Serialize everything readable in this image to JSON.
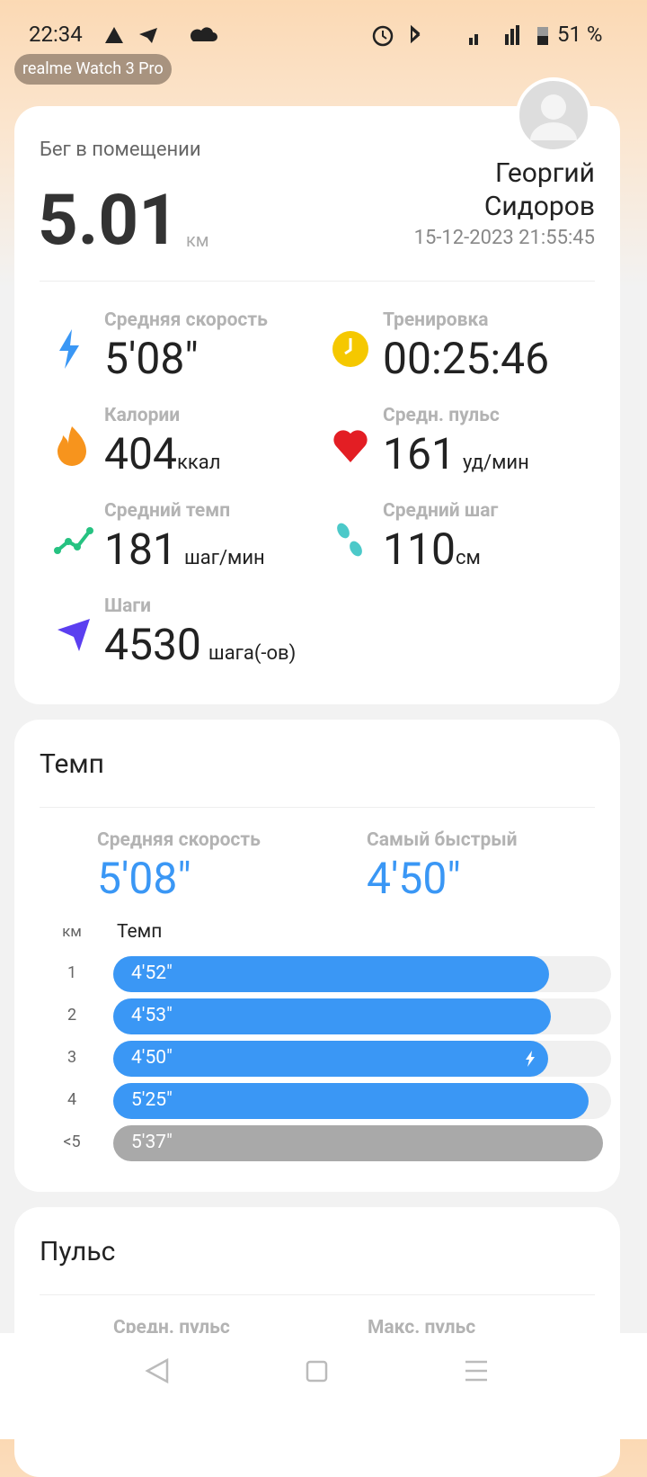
{
  "status": {
    "time": "22:34",
    "battery": "51 %"
  },
  "device": "realme Watch 3 Pro",
  "summary": {
    "activity": "Бег в помещении",
    "distance": "5.01",
    "unit": "км",
    "name_first": "Георгий",
    "name_last": "Сидоров",
    "datetime": "15-12-2023 21:55:45"
  },
  "metrics": [
    {
      "label": "Средняя скорость",
      "value": "5'08\"",
      "unit": ""
    },
    {
      "label": "Тренировка",
      "value": "00:25:46",
      "unit": ""
    },
    {
      "label": "Калории",
      "value": "404",
      "unit": "ккал"
    },
    {
      "label": "Средн. пульс",
      "value": "161",
      "unit": "уд/мин"
    },
    {
      "label": "Средний темп",
      "value": "181",
      "unit": "шаг/мин"
    },
    {
      "label": "Средний шаг",
      "value": "110",
      "unit": "см"
    },
    {
      "label": "Шаги",
      "value": "4530",
      "unit": "шага(-ов)"
    }
  ],
  "pace": {
    "title": "Темп",
    "avg_label": "Средняя скорость",
    "avg_value": "5'08\"",
    "fast_label": "Самый быстрый",
    "fast_value": "4'50\"",
    "col_km": "км",
    "col_pace": "Темп",
    "rows": [
      {
        "km": "1",
        "pace": "4'52\""
      },
      {
        "km": "2",
        "pace": "4'53\""
      },
      {
        "km": "3",
        "pace": "4'50\""
      },
      {
        "km": "4",
        "pace": "5'25\""
      },
      {
        "km": "<5",
        "pace": "5'37\""
      }
    ]
  },
  "pulse": {
    "title": "Пульс",
    "avg_label": "Средн. пульс",
    "max_label": "Макс. пульс"
  }
}
